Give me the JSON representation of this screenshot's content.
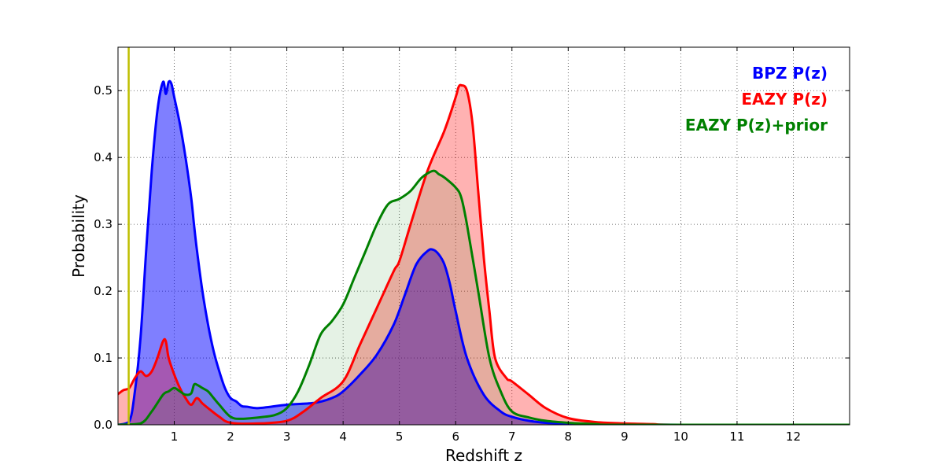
{
  "chart_data": {
    "type": "area",
    "title": "",
    "xlabel": "Redshift z",
    "ylabel": "Probability",
    "xlim": [
      0,
      13
    ],
    "ylim": [
      0,
      0.565
    ],
    "x_ticks": [
      1,
      2,
      3,
      4,
      5,
      6,
      7,
      8,
      9,
      10,
      11,
      12
    ],
    "y_ticks": [
      0.0,
      0.1,
      0.2,
      0.3,
      0.4,
      0.5
    ],
    "grid": true,
    "legend_position": "top-right",
    "vertical_line": {
      "x": 0.19,
      "color": "#bfbf00"
    },
    "series": [
      {
        "name": "BPZ P(z)",
        "color": "#0000ff",
        "fill_opacity": 0.5,
        "x": [
          0.0,
          0.2,
          0.3,
          0.4,
          0.5,
          0.6,
          0.7,
          0.8,
          0.85,
          0.9,
          0.95,
          1.0,
          1.1,
          1.2,
          1.3,
          1.35,
          1.4,
          1.5,
          1.6,
          1.7,
          1.8,
          1.9,
          2.0,
          2.1,
          2.2,
          2.3,
          2.5,
          3.0,
          3.5,
          3.8,
          4.0,
          4.3,
          4.6,
          4.9,
          5.1,
          5.3,
          5.5,
          5.6,
          5.7,
          5.8,
          5.9,
          6.0,
          6.2,
          6.5,
          6.8,
          7.0,
          7.3,
          7.6,
          8.0,
          8.5,
          9.0,
          10.0,
          13.0
        ],
        "values": [
          0.0,
          0.005,
          0.05,
          0.13,
          0.26,
          0.38,
          0.47,
          0.513,
          0.495,
          0.513,
          0.51,
          0.49,
          0.45,
          0.4,
          0.34,
          0.3,
          0.263,
          0.2,
          0.15,
          0.11,
          0.08,
          0.055,
          0.04,
          0.035,
          0.028,
          0.027,
          0.025,
          0.03,
          0.033,
          0.04,
          0.05,
          0.075,
          0.105,
          0.15,
          0.195,
          0.24,
          0.26,
          0.262,
          0.255,
          0.24,
          0.21,
          0.17,
          0.1,
          0.045,
          0.02,
          0.012,
          0.006,
          0.003,
          0.002,
          0.001,
          0.0005,
          0.0,
          0.0
        ]
      },
      {
        "name": "EAZY P(z)",
        "color": "#ff0000",
        "fill_opacity": 0.3,
        "x": [
          0.0,
          0.1,
          0.2,
          0.3,
          0.4,
          0.5,
          0.6,
          0.7,
          0.8,
          0.85,
          0.9,
          1.0,
          1.1,
          1.2,
          1.3,
          1.4,
          1.5,
          1.6,
          1.8,
          2.0,
          2.5,
          3.0,
          3.3,
          3.6,
          4.0,
          4.3,
          4.6,
          4.9,
          5.0,
          5.2,
          5.5,
          5.8,
          6.0,
          6.05,
          6.1,
          6.2,
          6.3,
          6.4,
          6.5,
          6.6,
          6.7,
          6.9,
          7.0,
          7.3,
          7.6,
          8.0,
          8.5,
          9.0,
          9.5,
          10.0,
          13.0
        ],
        "values": [
          0.046,
          0.052,
          0.055,
          0.07,
          0.08,
          0.073,
          0.08,
          0.1,
          0.125,
          0.125,
          0.1,
          0.075,
          0.055,
          0.04,
          0.03,
          0.04,
          0.032,
          0.025,
          0.012,
          0.003,
          0.002,
          0.006,
          0.02,
          0.04,
          0.065,
          0.12,
          0.175,
          0.23,
          0.245,
          0.3,
          0.38,
          0.44,
          0.49,
          0.505,
          0.508,
          0.5,
          0.45,
          0.35,
          0.25,
          0.17,
          0.1,
          0.07,
          0.065,
          0.045,
          0.025,
          0.01,
          0.004,
          0.002,
          0.001,
          0.0,
          0.0
        ]
      },
      {
        "name": "EAZY P(z)+prior",
        "color": "#008000",
        "fill_opacity": 0.1,
        "x": [
          0.0,
          0.4,
          0.6,
          0.8,
          0.9,
          1.0,
          1.1,
          1.2,
          1.3,
          1.35,
          1.4,
          1.5,
          1.6,
          1.7,
          1.8,
          2.0,
          2.2,
          2.6,
          2.8,
          3.0,
          3.2,
          3.4,
          3.6,
          3.8,
          4.0,
          4.2,
          4.4,
          4.6,
          4.8,
          5.0,
          5.2,
          5.4,
          5.6,
          5.7,
          5.8,
          6.0,
          6.1,
          6.2,
          6.4,
          6.6,
          6.8,
          7.0,
          7.3,
          7.6,
          8.0,
          8.5,
          9.0,
          13.0
        ],
        "values": [
          0.0,
          0.002,
          0.02,
          0.045,
          0.05,
          0.055,
          0.05,
          0.045,
          0.047,
          0.06,
          0.06,
          0.055,
          0.05,
          0.04,
          0.03,
          0.012,
          0.009,
          0.012,
          0.015,
          0.025,
          0.05,
          0.09,
          0.135,
          0.155,
          0.18,
          0.22,
          0.26,
          0.3,
          0.33,
          0.338,
          0.35,
          0.37,
          0.38,
          0.375,
          0.37,
          0.355,
          0.34,
          0.3,
          0.2,
          0.1,
          0.05,
          0.02,
          0.011,
          0.006,
          0.003,
          0.001,
          0.0,
          0.0
        ]
      }
    ]
  }
}
